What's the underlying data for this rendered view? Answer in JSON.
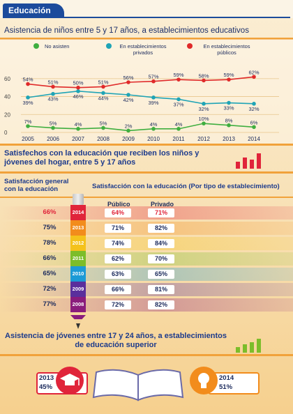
{
  "header": {
    "title": "Educación"
  },
  "section1": {
    "title": "Asistencia de niños entre 5 y 17 años, a establecimientos educativos"
  },
  "chart_data": {
    "type": "line",
    "x": [
      "2005",
      "2006",
      "2007",
      "2008",
      "2009",
      "2010",
      "2011",
      "2012",
      "2013",
      "2014"
    ],
    "ylim": [
      0,
      70
    ],
    "yticks": [
      0,
      20,
      40,
      60
    ],
    "series": [
      {
        "name": "No asisten",
        "color": "#3fae3f",
        "values": [
          7,
          5,
          4,
          5,
          2,
          4,
          4,
          10,
          8,
          6
        ]
      },
      {
        "name": "En establecimientos privados",
        "color": "#1fa4b6",
        "values": [
          39,
          43,
          46,
          44,
          42,
          39,
          37,
          32,
          33,
          32
        ]
      },
      {
        "name": "En establecimientos públicos",
        "color": "#e02a2a",
        "values": [
          54,
          51,
          50,
          51,
          56,
          57,
          59,
          58,
          59,
          62
        ]
      }
    ],
    "legend": "top"
  },
  "section2": {
    "title": "Satisfechos con la educación que reciben los niños y jóvenes del hogar, entre 5 y 17 años"
  },
  "satisfaction": {
    "general_label": "Satisfacción general con la educación",
    "type_label": "Satisfacción con la educación (Por tipo de establecimiento)",
    "col_publico": "Público",
    "col_privado": "Privado",
    "rows": [
      {
        "year": "2014",
        "general": "66%",
        "publico": "64%",
        "privado": "71%",
        "color": "#e0243a"
      },
      {
        "year": "2013",
        "general": "75%",
        "publico": "71%",
        "privado": "82%",
        "color": "#f28c1c"
      },
      {
        "year": "2012",
        "general": "78%",
        "publico": "74%",
        "privado": "84%",
        "color": "#f4c21c"
      },
      {
        "year": "2011",
        "general": "66%",
        "publico": "62%",
        "privado": "70%",
        "color": "#7cbd2a"
      },
      {
        "year": "2010",
        "general": "65%",
        "publico": "63%",
        "privado": "65%",
        "color": "#1c9ad6"
      },
      {
        "year": "2009",
        "general": "72%",
        "publico": "66%",
        "privado": "81%",
        "color": "#5a2f9c"
      },
      {
        "year": "2008",
        "general": "77%",
        "publico": "72%",
        "privado": "82%",
        "color": "#8a1c7c"
      }
    ]
  },
  "section3": {
    "title": "Asistencia de jóvenes entre 17 y 24 años, a establecimientos de educación superior",
    "left_year": "2013",
    "left_value": "45%",
    "right_year": "2014",
    "right_value": "51%"
  },
  "icons": [
    "graduation-cap-icon",
    "open-book-icon",
    "light-bulb-icon",
    "bar-chart-icon",
    "pencil-icon"
  ]
}
